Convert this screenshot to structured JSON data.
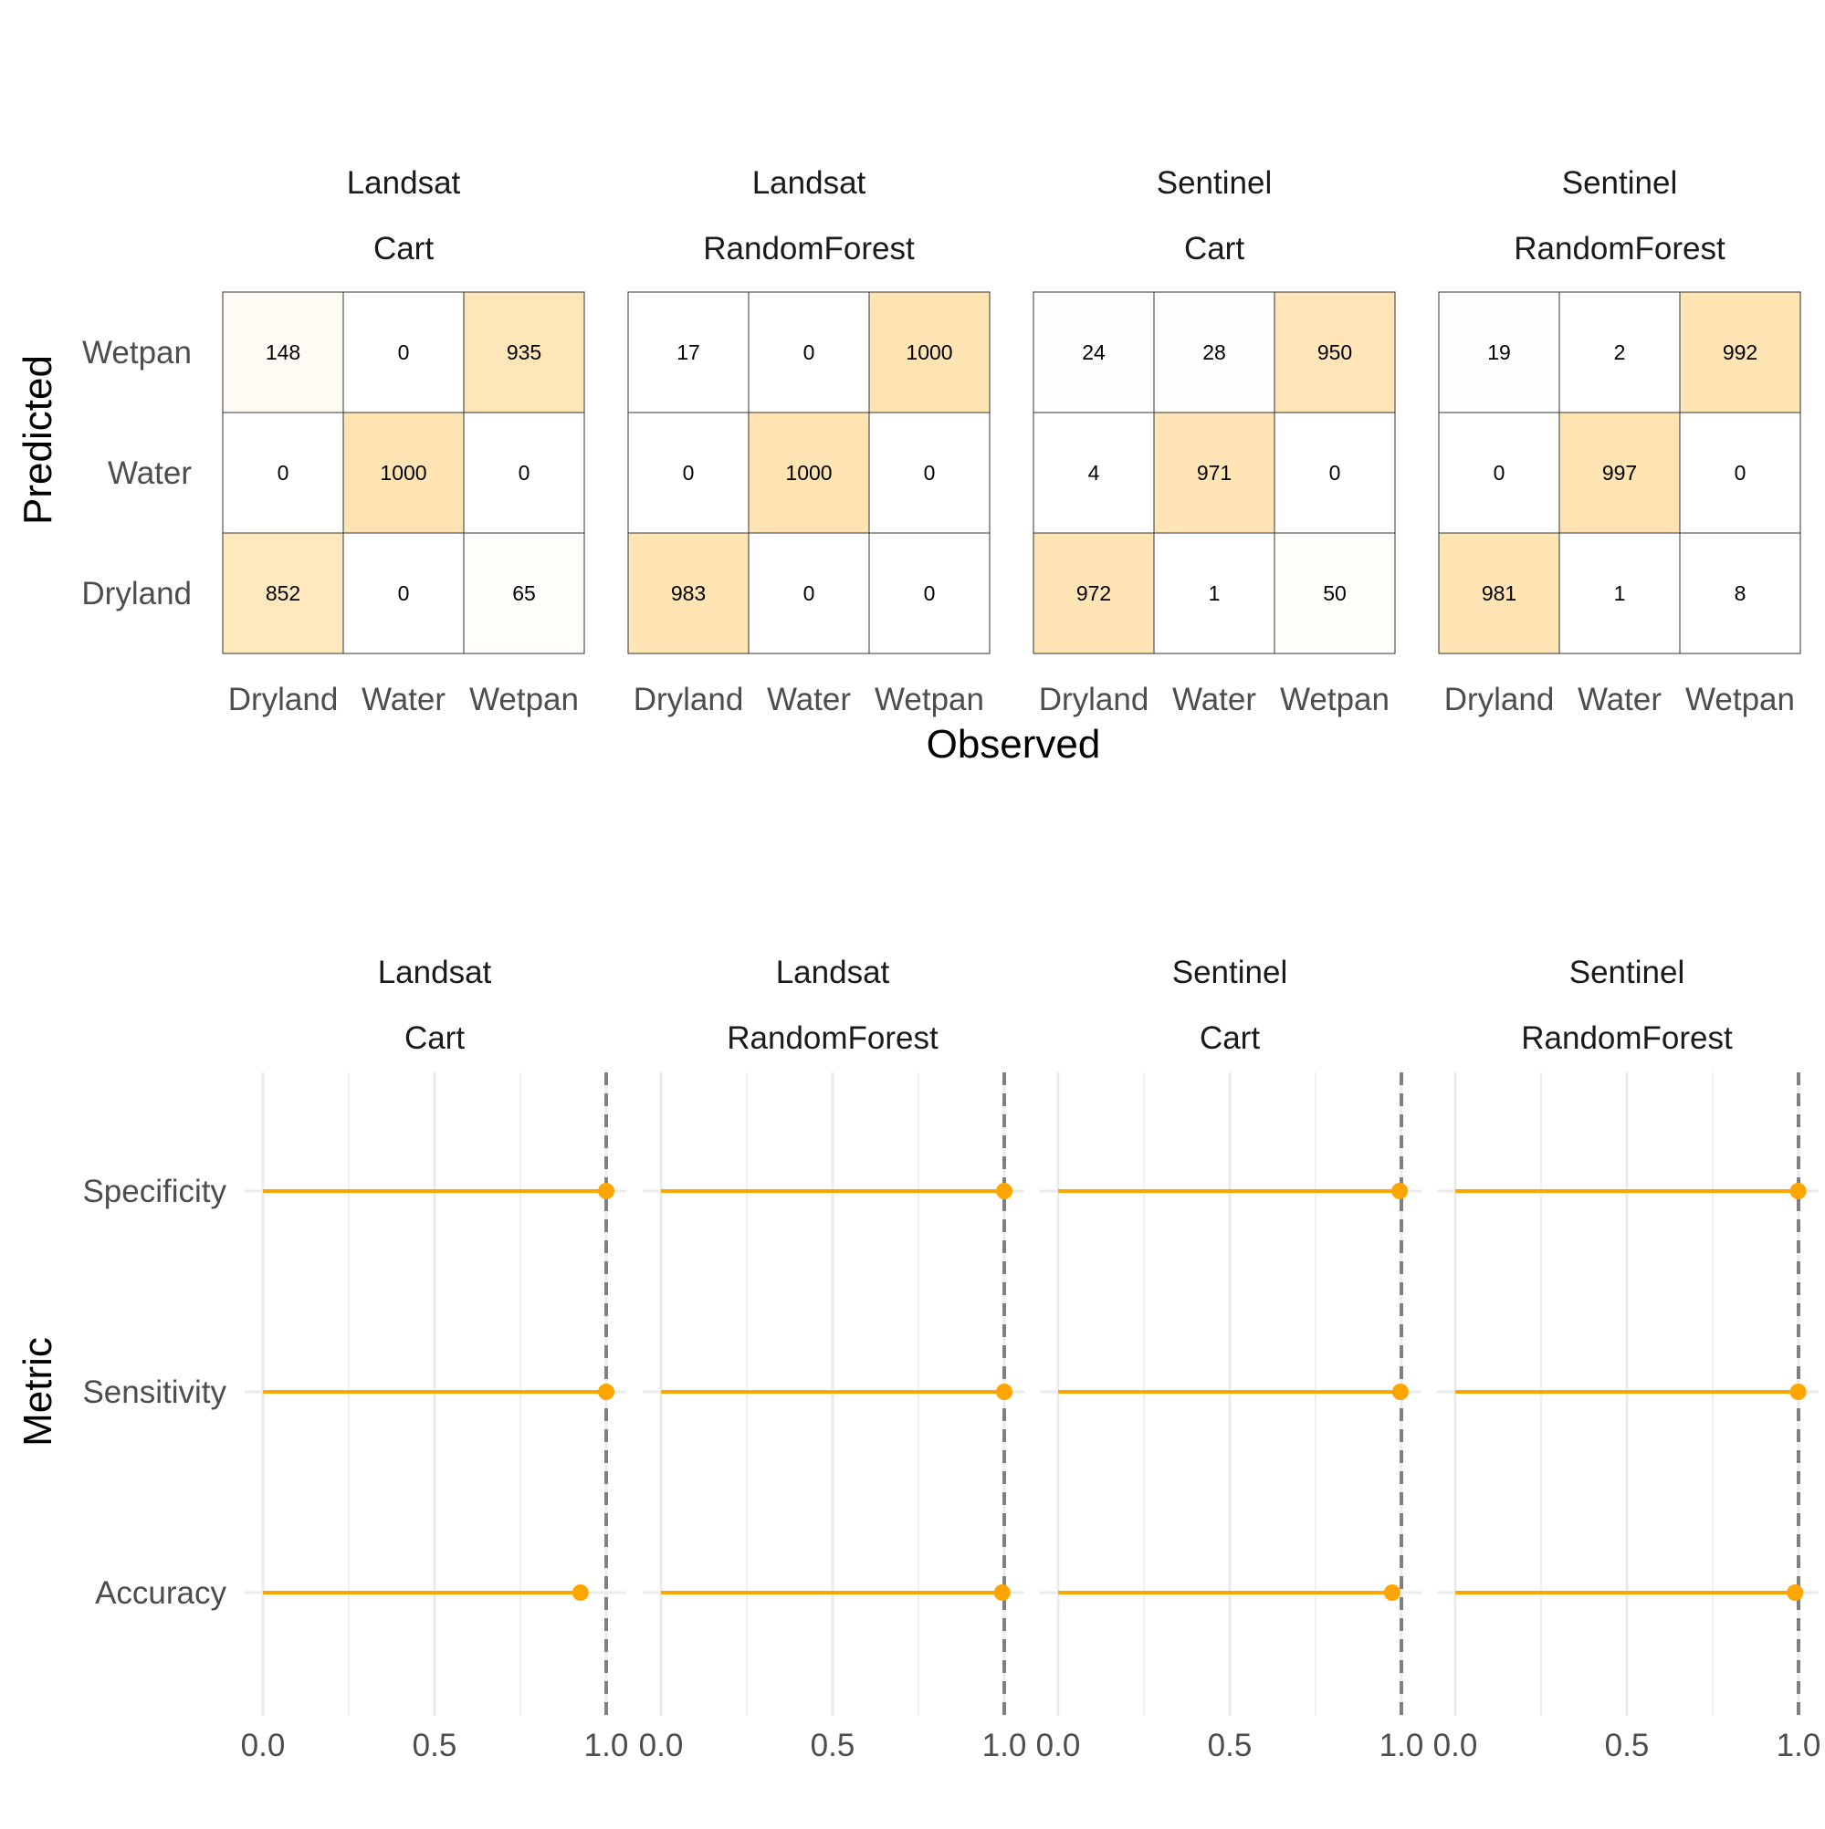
{
  "chart_data": [
    {
      "type": "heatmap",
      "xlabel": "Observed",
      "ylabel": "Predicted",
      "x_categories": [
        "Dryland",
        "Water",
        "Wetpan"
      ],
      "y_categories": [
        "Dryland",
        "Water",
        "Wetpan"
      ],
      "fill_low": "#ffffff",
      "fill_high": "#ffe4b3",
      "panels": [
        {
          "strip": [
            "Landsat",
            "Cart"
          ],
          "rows": [
            {
              "predicted": "Wetpan",
              "values": [
                148,
                0,
                935
              ]
            },
            {
              "predicted": "Water",
              "values": [
                0,
                1000,
                0
              ]
            },
            {
              "predicted": "Dryland",
              "values": [
                852,
                0,
                65
              ]
            }
          ]
        },
        {
          "strip": [
            "Landsat",
            "RandomForest"
          ],
          "rows": [
            {
              "predicted": "Wetpan",
              "values": [
                17,
                0,
                1000
              ]
            },
            {
              "predicted": "Water",
              "values": [
                0,
                1000,
                0
              ]
            },
            {
              "predicted": "Dryland",
              "values": [
                983,
                0,
                0
              ]
            }
          ]
        },
        {
          "strip": [
            "Sentinel",
            "Cart"
          ],
          "rows": [
            {
              "predicted": "Wetpan",
              "values": [
                24,
                28,
                950
              ]
            },
            {
              "predicted": "Water",
              "values": [
                4,
                971,
                0
              ]
            },
            {
              "predicted": "Dryland",
              "values": [
                972,
                1,
                50
              ]
            }
          ]
        },
        {
          "strip": [
            "Sentinel",
            "RandomForest"
          ],
          "rows": [
            {
              "predicted": "Wetpan",
              "values": [
                19,
                2,
                992
              ]
            },
            {
              "predicted": "Water",
              "values": [
                0,
                997,
                0
              ]
            },
            {
              "predicted": "Dryland",
              "values": [
                981,
                1,
                8
              ]
            }
          ]
        }
      ]
    },
    {
      "type": "scatter",
      "subtype": "lollipop",
      "xlabel": "",
      "ylabel": "Metric",
      "categories": [
        "Specificity",
        "Sensitivity",
        "Accuracy"
      ],
      "xlim": [
        0,
        1
      ],
      "x_ticks": [
        "0.0",
        "0.5",
        "1.0"
      ],
      "reference_line": 1.0,
      "color": "#ffa500",
      "reference_color": "#808080",
      "panels": [
        {
          "strip": [
            "Landsat",
            "Cart"
          ],
          "values": {
            "Specificity": 1.0,
            "Sensitivity": 1.0,
            "Accuracy": 0.925
          }
        },
        {
          "strip": [
            "Landsat",
            "RandomForest"
          ],
          "values": {
            "Specificity": 1.0,
            "Sensitivity": 1.0,
            "Accuracy": 0.994
          }
        },
        {
          "strip": [
            "Sentinel",
            "Cart"
          ],
          "values": {
            "Specificity": 0.995,
            "Sensitivity": 0.997,
            "Accuracy": 0.973
          }
        },
        {
          "strip": [
            "Sentinel",
            "RandomForest"
          ],
          "values": {
            "Specificity": 0.999,
            "Sensitivity": 0.999,
            "Accuracy": 0.99
          }
        }
      ]
    }
  ]
}
